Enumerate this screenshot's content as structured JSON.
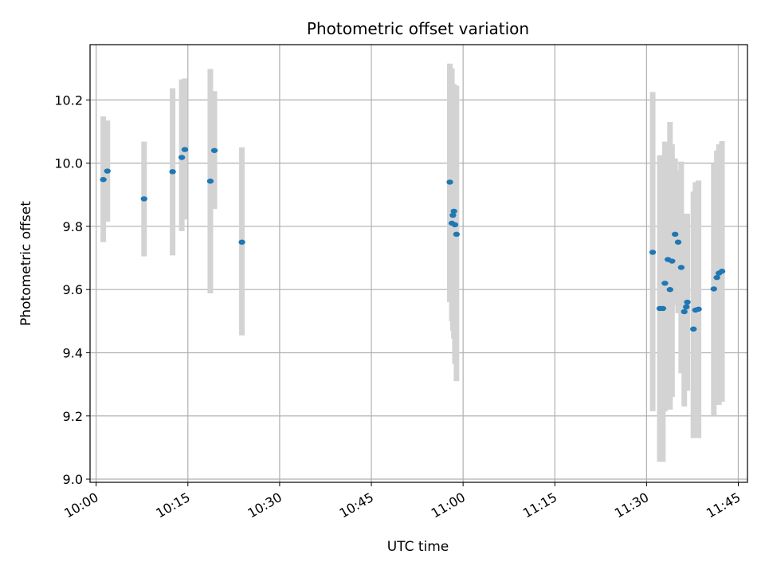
{
  "chart_data": {
    "type": "scatter",
    "title": "Photometric offset variation",
    "xlabel": "UTC time",
    "ylabel": "Photometric offset",
    "x_axis_kind": "time",
    "xlim": [
      "09:59:00",
      "11:46:30"
    ],
    "ylim": [
      8.99,
      10.375
    ],
    "x_ticks": [
      {
        "t": "10:00:00",
        "label": "10:00"
      },
      {
        "t": "10:15:00",
        "label": "10:15"
      },
      {
        "t": "10:30:00",
        "label": "10:30"
      },
      {
        "t": "10:45:00",
        "label": "10:45"
      },
      {
        "t": "11:00:00",
        "label": "11:00"
      },
      {
        "t": "11:15:00",
        "label": "11:15"
      },
      {
        "t": "11:30:00",
        "label": "11:30"
      },
      {
        "t": "11:45:00",
        "label": "11:45"
      }
    ],
    "y_ticks": [
      {
        "v": 9.0,
        "label": "9.0"
      },
      {
        "v": 9.2,
        "label": "9.2"
      },
      {
        "v": 9.4,
        "label": "9.4"
      },
      {
        "v": 9.6,
        "label": "9.6"
      },
      {
        "v": 9.8,
        "label": "9.8"
      },
      {
        "v": 10.0,
        "label": "10.0"
      },
      {
        "v": 10.2,
        "label": "10.2"
      }
    ],
    "grid": true,
    "marker_color": "#1f77b4",
    "errorbar_color": "#d3d3d3",
    "points": [
      {
        "t": "10:01:10",
        "y": 9.948,
        "lo": 9.75,
        "hi": 10.148
      },
      {
        "t": "10:01:50",
        "y": 9.975,
        "lo": 9.815,
        "hi": 10.135
      },
      {
        "t": "10:07:50",
        "y": 9.887,
        "lo": 9.705,
        "hi": 10.068
      },
      {
        "t": "10:12:30",
        "y": 9.973,
        "lo": 9.708,
        "hi": 10.237
      },
      {
        "t": "10:14:00",
        "y": 10.018,
        "lo": 9.785,
        "hi": 10.265
      },
      {
        "t": "10:14:30",
        "y": 10.043,
        "lo": 9.822,
        "hi": 10.268
      },
      {
        "t": "10:18:40",
        "y": 9.943,
        "lo": 9.588,
        "hi": 10.298
      },
      {
        "t": "10:19:20",
        "y": 10.04,
        "lo": 9.855,
        "hi": 10.228
      },
      {
        "t": "10:23:50",
        "y": 9.75,
        "lo": 9.455,
        "hi": 10.05
      },
      {
        "t": "10:57:50",
        "y": 9.94,
        "lo": 9.56,
        "hi": 10.315
      },
      {
        "t": "10:58:10",
        "y": 9.81,
        "lo": 9.5,
        "hi": 10.3
      },
      {
        "t": "10:58:20",
        "y": 9.835,
        "lo": 9.47,
        "hi": 10.25
      },
      {
        "t": "10:58:30",
        "y": 9.848,
        "lo": 9.445,
        "hi": 10.25
      },
      {
        "t": "10:58:40",
        "y": 9.805,
        "lo": 9.365,
        "hi": 10.245
      },
      {
        "t": "10:58:55",
        "y": 9.775,
        "lo": 9.31,
        "hi": 10.245
      },
      {
        "t": "11:31:00",
        "y": 9.718,
        "lo": 9.215,
        "hi": 10.225
      },
      {
        "t": "11:32:10",
        "y": 9.54,
        "lo": 9.055,
        "hi": 10.025
      },
      {
        "t": "11:32:40",
        "y": 9.54,
        "lo": 9.055,
        "hi": 10.025
      },
      {
        "t": "11:33:00",
        "y": 9.62,
        "lo": 9.215,
        "hi": 10.068
      },
      {
        "t": "11:33:30",
        "y": 9.695,
        "lo": 9.3,
        "hi": 10.058
      },
      {
        "t": "11:33:50",
        "y": 9.6,
        "lo": 9.22,
        "hi": 10.13
      },
      {
        "t": "11:34:10",
        "y": 9.69,
        "lo": 9.26,
        "hi": 10.06
      },
      {
        "t": "11:34:40",
        "y": 9.775,
        "lo": 9.55,
        "hi": 10.015
      },
      {
        "t": "11:35:10",
        "y": 9.75,
        "lo": 9.525,
        "hi": 9.975
      },
      {
        "t": "11:35:40",
        "y": 9.67,
        "lo": 9.335,
        "hi": 10.005
      },
      {
        "t": "11:36:10",
        "y": 9.53,
        "lo": 9.23,
        "hi": 9.84
      },
      {
        "t": "11:36:30",
        "y": 9.545,
        "lo": 9.28,
        "hi": 9.84
      },
      {
        "t": "11:36:40",
        "y": 9.56,
        "lo": 9.28,
        "hi": 9.84
      },
      {
        "t": "11:37:40",
        "y": 9.475,
        "lo": 9.13,
        "hi": 9.91
      },
      {
        "t": "11:38:00",
        "y": 9.535,
        "lo": 9.13,
        "hi": 9.94
      },
      {
        "t": "11:38:30",
        "y": 9.538,
        "lo": 9.13,
        "hi": 9.945
      },
      {
        "t": "11:41:00",
        "y": 9.602,
        "lo": 9.2,
        "hi": 10.0
      },
      {
        "t": "11:41:30",
        "y": 9.638,
        "lo": 9.235,
        "hi": 10.04
      },
      {
        "t": "11:41:50",
        "y": 9.652,
        "lo": 9.235,
        "hi": 10.06
      },
      {
        "t": "11:42:20",
        "y": 9.658,
        "lo": 9.245,
        "hi": 10.07
      }
    ]
  }
}
